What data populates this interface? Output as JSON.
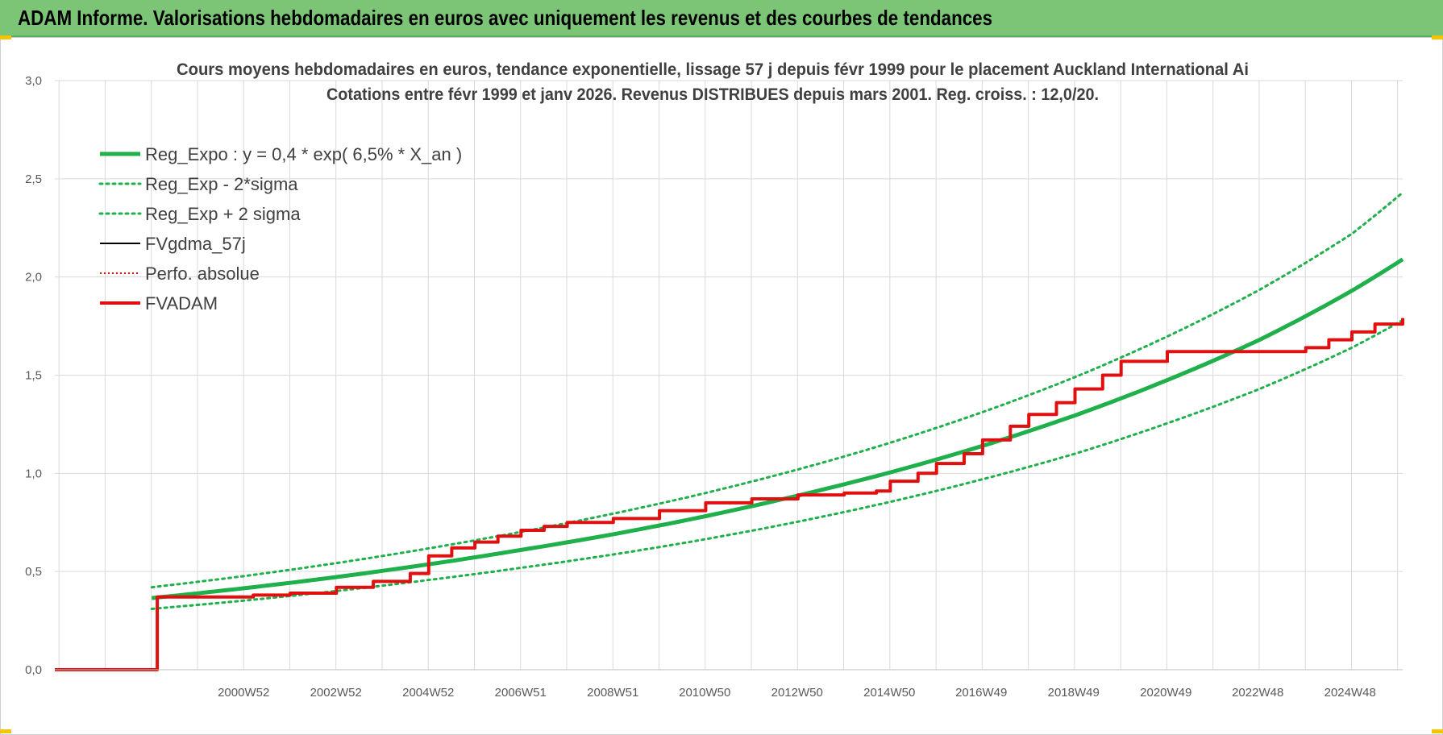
{
  "header": {
    "title": "ADAM Informe. Valorisations hebdomadaires en euros avec uniquement les revenus et des courbes de tendances"
  },
  "chart_data": {
    "type": "line",
    "title": "Cours moyens hebdomadaires en euros, tendance exponentielle, lissage 57 j depuis févr 1999 pour le placement Auckland International Ai",
    "subtitle": "Cotations entre févr 1999 et janv 2026. Revenus DISTRIBUES depuis mars 2001. Reg. croiss. : 12,0/20.",
    "xlabel": "",
    "ylabel": "",
    "x_range": [
      1996.9,
      2026.1
    ],
    "ylim": [
      0,
      3
    ],
    "y_ticks": [
      0,
      0.5,
      1.0,
      1.5,
      2.0,
      2.5,
      3.0
    ],
    "y_tick_labels": [
      "0,0",
      "0,5",
      "1,0",
      "1,5",
      "2,0",
      "2,5",
      "3,0"
    ],
    "x_ticks": [
      2000.99,
      2002.99,
      2004.99,
      2006.99,
      2008.99,
      2010.98,
      2012.98,
      2014.98,
      2016.97,
      2018.97,
      2020.97,
      2022.96,
      2024.96
    ],
    "x_tick_labels": [
      "2000W52",
      "2002W52",
      "2004W52",
      "2006W51",
      "2008W51",
      "2010W50",
      "2012W50",
      "2014W50",
      "2016W49",
      "2018W49",
      "2020W49",
      "2022W48",
      "2024W48"
    ],
    "grid": true,
    "legend_position": "top-left",
    "colors": {
      "reg_expo": "#1fb04b",
      "fvgdma": "#000000",
      "fvadam": "#e01010",
      "grid": "#d9d9d9",
      "header_bg": "#7cc576"
    },
    "series": [
      {
        "name": "Reg_Expo : y = 0,4 * exp( 6,5% *  X_an )",
        "style": "solid-thick",
        "x": [
          1999.0,
          2001.0,
          2003.0,
          2005.0,
          2007.0,
          2009.0,
          2011.0,
          2013.0,
          2015.0,
          2017.0,
          2019.0,
          2021.0,
          2023.0,
          2025.0,
          2026.1
        ],
        "y": [
          0.365,
          0.415,
          0.472,
          0.537,
          0.61,
          0.69,
          0.782,
          0.887,
          1.005,
          1.14,
          1.295,
          1.475,
          1.68,
          1.93,
          2.09
        ]
      },
      {
        "name": "Reg_Exp - 2*sigma",
        "style": "dotted",
        "x": [
          1999.0,
          2001.0,
          2003.0,
          2005.0,
          2007.0,
          2009.0,
          2011.0,
          2013.0,
          2015.0,
          2017.0,
          2019.0,
          2021.0,
          2023.0,
          2025.0,
          2026.1
        ],
        "y": [
          0.31,
          0.352,
          0.401,
          0.457,
          0.519,
          0.587,
          0.665,
          0.754,
          0.855,
          0.97,
          1.1,
          1.255,
          1.43,
          1.64,
          1.78
        ]
      },
      {
        "name": "Reg_Exp + 2 sigma",
        "style": "dotted",
        "x": [
          1999.0,
          2001.0,
          2003.0,
          2005.0,
          2007.0,
          2009.0,
          2011.0,
          2013.0,
          2015.0,
          2017.0,
          2019.0,
          2021.0,
          2023.0,
          2025.0,
          2026.1
        ],
        "y": [
          0.42,
          0.477,
          0.543,
          0.618,
          0.702,
          0.795,
          0.9,
          1.02,
          1.156,
          1.312,
          1.49,
          1.697,
          1.935,
          2.22,
          2.43
        ]
      },
      {
        "name": "FVgdma_57j",
        "style": "solid-thin",
        "x": [
          1996.9,
          1999.1,
          1999.12,
          2001.2,
          2002.0,
          2003.0,
          2003.8,
          2004.6,
          2005.0,
          2005.5,
          2006.0,
          2006.5,
          2007.0,
          2007.5,
          2008.0,
          2009.0,
          2010.0,
          2011.0,
          2012.0,
          2013.0,
          2014.0,
          2014.7,
          2015.0,
          2015.6,
          2016.0,
          2016.6,
          2017.0,
          2017.6,
          2018.0,
          2018.6,
          2019.0,
          2019.6,
          2020.0,
          2021.0,
          2022.0,
          2023.0,
          2023.5,
          2024.0,
          2024.5,
          2025.0,
          2025.5,
          2026.1
        ],
        "y": [
          0.0,
          0.0,
          0.37,
          0.38,
          0.39,
          0.42,
          0.45,
          0.49,
          0.58,
          0.62,
          0.65,
          0.68,
          0.71,
          0.73,
          0.75,
          0.77,
          0.81,
          0.85,
          0.87,
          0.89,
          0.9,
          0.91,
          0.96,
          1.0,
          1.05,
          1.1,
          1.17,
          1.24,
          1.3,
          1.36,
          1.43,
          1.5,
          1.57,
          1.62,
          1.62,
          1.62,
          1.62,
          1.64,
          1.68,
          1.72,
          1.76,
          1.79
        ]
      },
      {
        "name": "Perfo. absolue",
        "style": "dotted-red",
        "x": [],
        "y": []
      },
      {
        "name": "FVADAM",
        "style": "solid-thick-red",
        "x": [
          1996.9,
          1999.1,
          1999.12,
          2001.2,
          2002.0,
          2003.0,
          2003.8,
          2004.6,
          2005.0,
          2005.5,
          2006.0,
          2006.5,
          2007.0,
          2007.5,
          2008.0,
          2009.0,
          2010.0,
          2011.0,
          2012.0,
          2013.0,
          2014.0,
          2014.7,
          2015.0,
          2015.6,
          2016.0,
          2016.6,
          2017.0,
          2017.6,
          2018.0,
          2018.6,
          2019.0,
          2019.6,
          2020.0,
          2021.0,
          2022.0,
          2023.0,
          2023.5,
          2024.0,
          2024.5,
          2025.0,
          2025.5,
          2026.1
        ],
        "y": [
          0.0,
          0.0,
          0.37,
          0.38,
          0.39,
          0.42,
          0.45,
          0.49,
          0.58,
          0.62,
          0.65,
          0.68,
          0.71,
          0.73,
          0.75,
          0.77,
          0.81,
          0.85,
          0.87,
          0.89,
          0.9,
          0.91,
          0.96,
          1.0,
          1.05,
          1.1,
          1.17,
          1.24,
          1.3,
          1.36,
          1.43,
          1.5,
          1.57,
          1.62,
          1.62,
          1.62,
          1.62,
          1.64,
          1.68,
          1.72,
          1.76,
          1.79
        ]
      }
    ]
  }
}
